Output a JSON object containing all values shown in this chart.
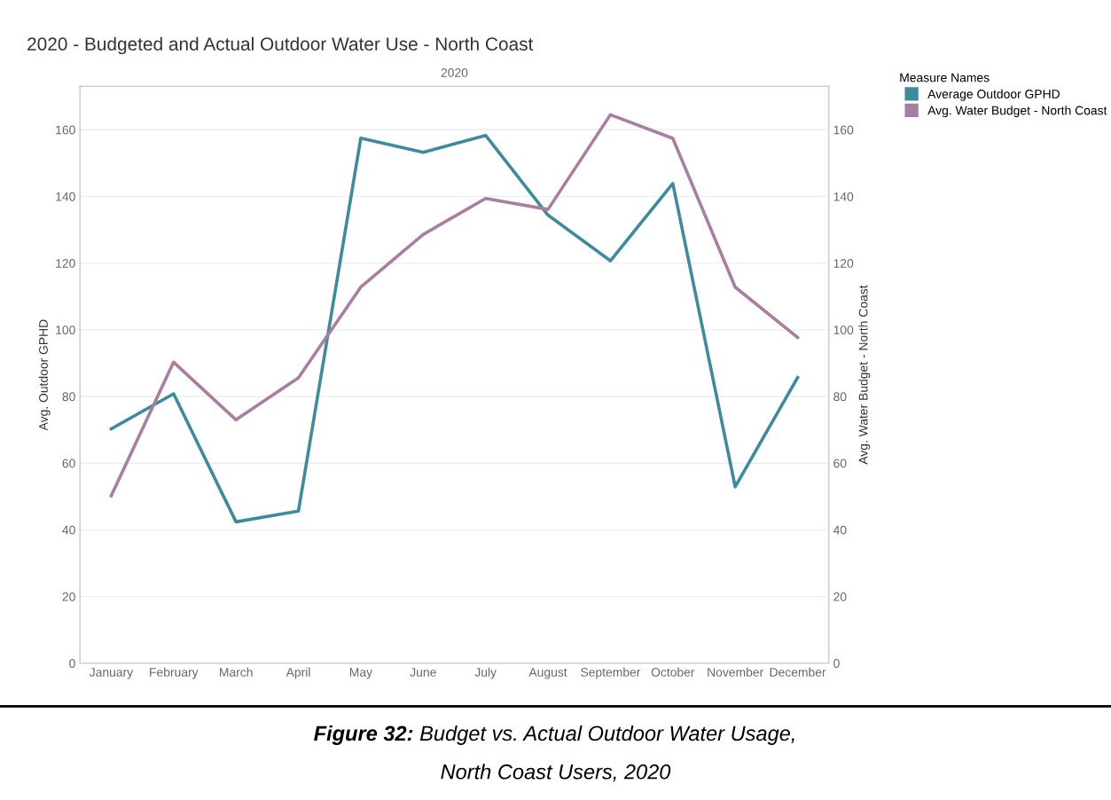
{
  "chart_data": {
    "type": "line",
    "title": "2020 - Budgeted and Actual Outdoor Water Use - North Coast",
    "categories": [
      "January",
      "February",
      "March",
      "April",
      "May",
      "June",
      "July",
      "August",
      "September",
      "October",
      "November",
      "December"
    ],
    "series": [
      {
        "name": "Average Outdoor GPHD",
        "color": "#3d8c9e",
        "values": [
          70.3,
          80.8,
          42.4,
          45.6,
          157.5,
          153.2,
          158.3,
          134.4,
          120.7,
          143.9,
          52.9,
          85.7
        ]
      },
      {
        "name": "Avg. Water Budget - North Coast",
        "color": "#a97ea3",
        "axis": "y2",
        "values": [
          50.2,
          90.3,
          73.0,
          85.6,
          112.8,
          128.6,
          139.4,
          136.1,
          164.5,
          157.4,
          112.8,
          97.7
        ]
      }
    ],
    "ylabel": "Avg. Outdoor GPHD",
    "y2label": "Avg. Water Budget - North Coast",
    "ylim": [
      0,
      173
    ],
    "yticks": [
      0,
      20,
      40,
      60,
      80,
      100,
      120,
      140,
      160
    ],
    "y2lim": [
      0,
      173
    ],
    "y2ticks": [
      0,
      20,
      40,
      60,
      80,
      100,
      120,
      140,
      160
    ],
    "legend_title": "Measure Names",
    "legend": "right",
    "grid": "y",
    "marker": "none",
    "line_style": "solid",
    "annotations": [
      "2020",
      "Figure 32:",
      "Budget vs. Actual Outdoor Water Usage,",
      "North Coast Users, 2020"
    ]
  }
}
